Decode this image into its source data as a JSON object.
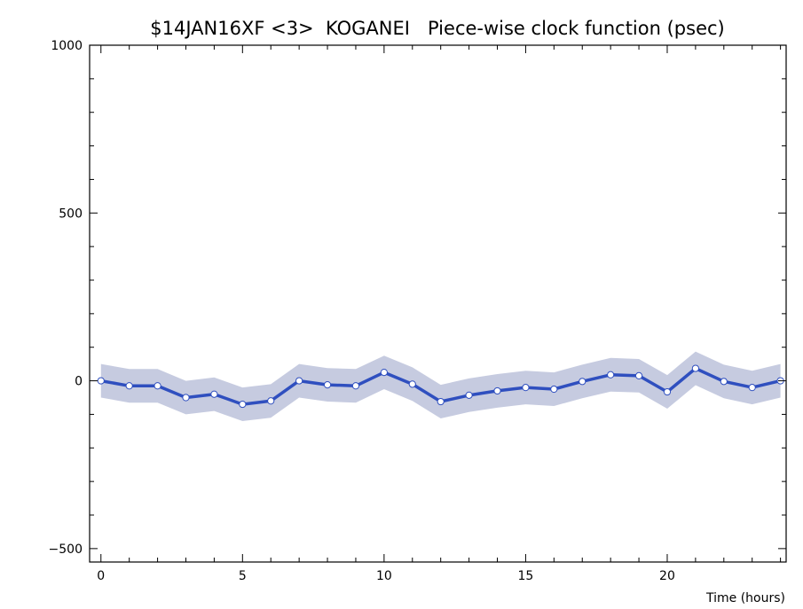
{
  "chart_data": {
    "type": "line",
    "title": "$14JAN16XF <3>  KOGANEI   Piece-wise clock function (psec)",
    "xlabel": "Time (hours)",
    "ylabel": "",
    "xlim": [
      -0.4,
      24.2
    ],
    "ylim": [
      -540,
      1000
    ],
    "x_ticks": [
      0,
      5,
      10,
      15,
      20
    ],
    "y_ticks": [
      1000,
      500,
      0,
      -500
    ],
    "grid": false,
    "colors": {
      "line": "#2f4fbf",
      "band": "#c6cbe0",
      "marker_fill": "#ffffff",
      "axis": "#000000"
    },
    "band_halfwidth": 50,
    "series": [
      {
        "x": [
          0,
          1,
          2,
          3,
          4,
          5,
          6,
          7,
          8,
          9,
          10,
          11,
          12,
          13,
          14,
          15,
          16,
          17,
          18,
          19,
          20,
          21,
          22,
          23,
          24
        ],
        "y": [
          0,
          -15,
          -15,
          -50,
          -40,
          -70,
          -60,
          0,
          -12,
          -15,
          25,
          -10,
          -62,
          -43,
          -30,
          -20,
          -25,
          -2,
          18,
          15,
          -33,
          37,
          -2,
          -20,
          0
        ]
      }
    ]
  }
}
